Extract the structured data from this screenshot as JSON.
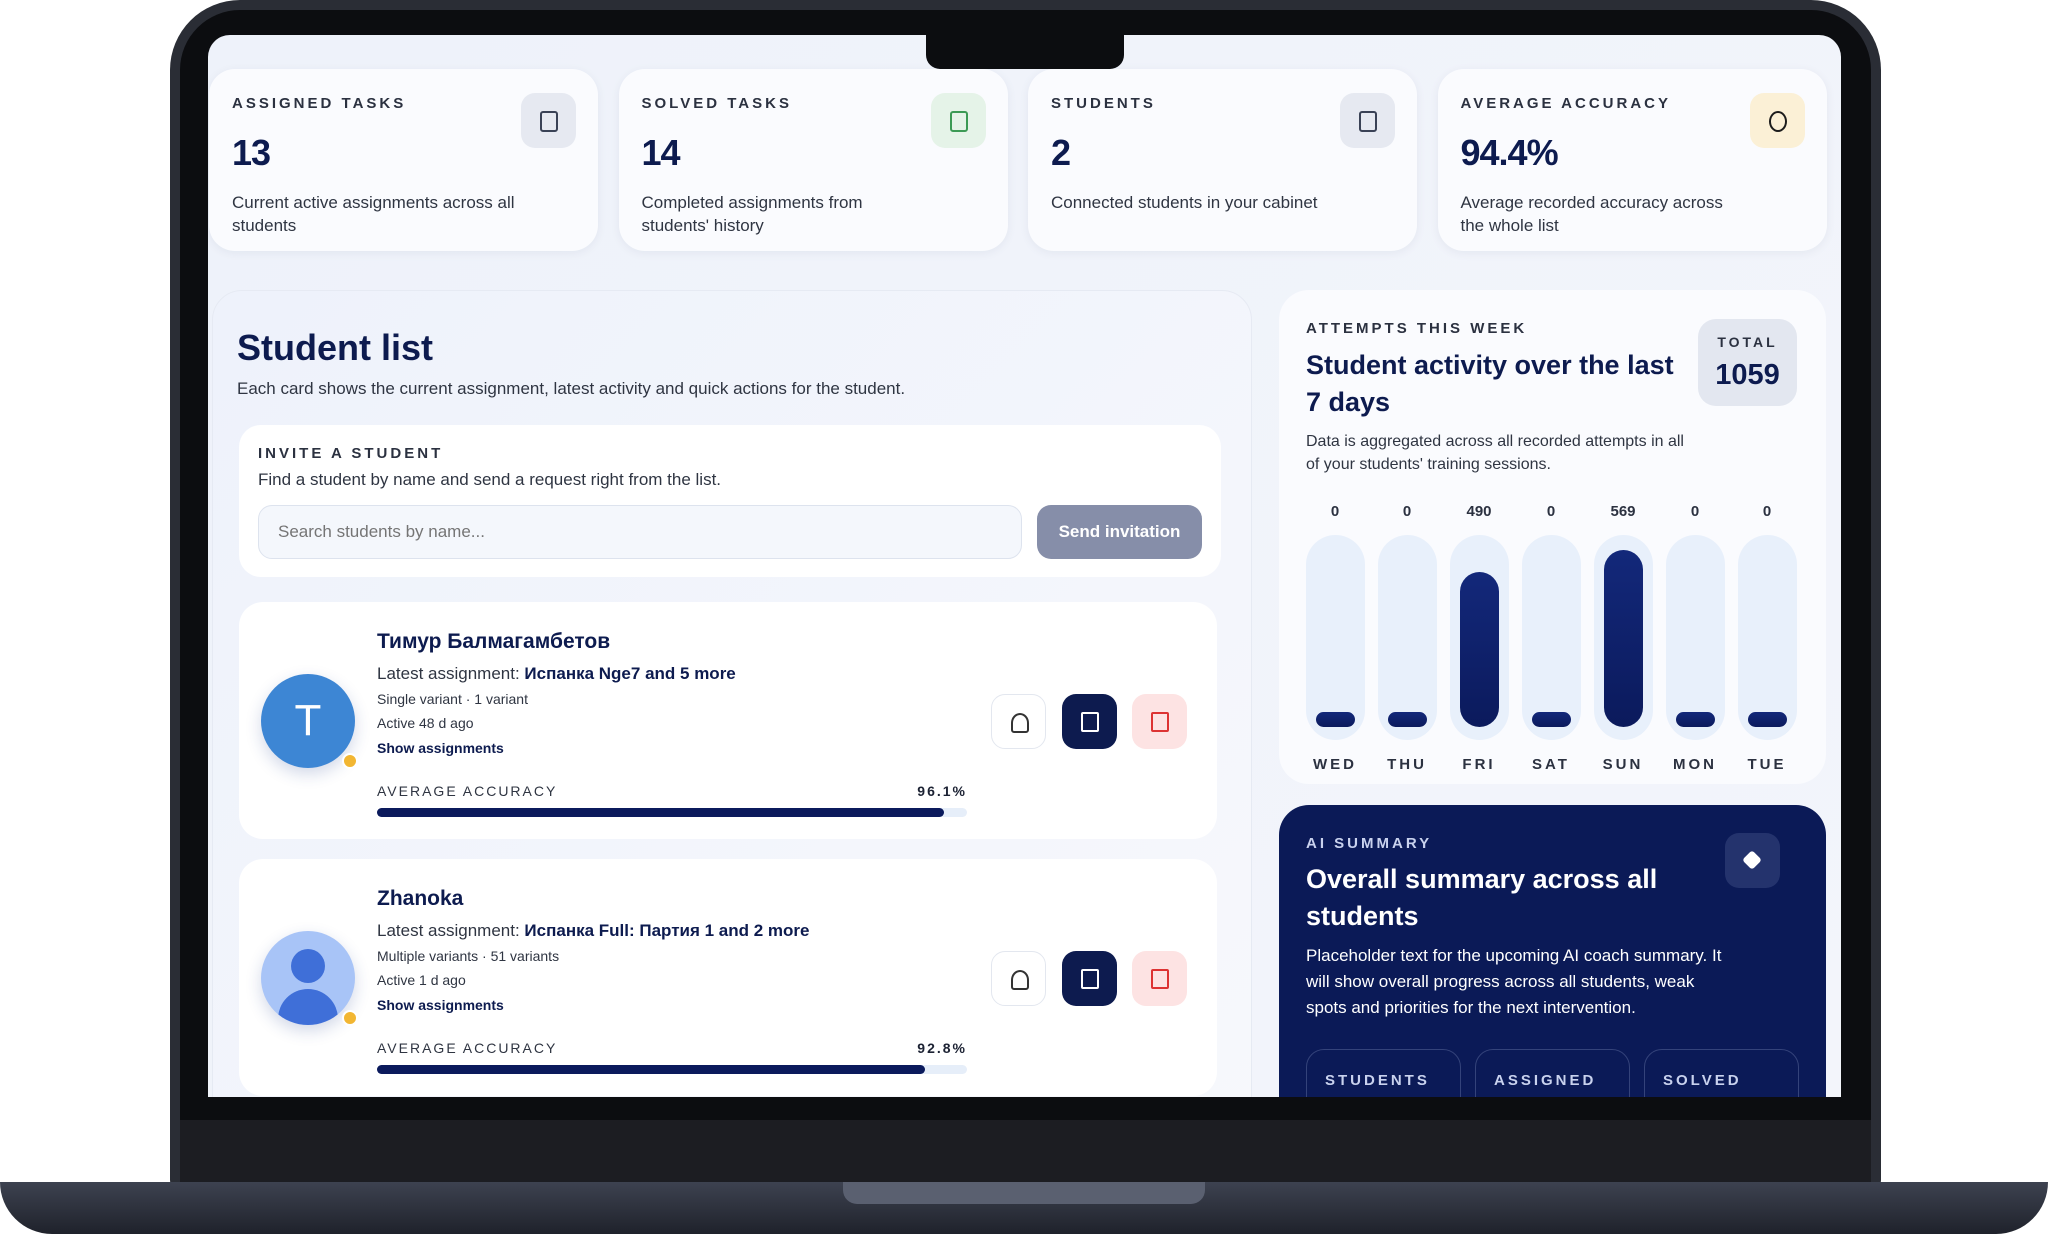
{
  "stats": [
    {
      "label": "ASSIGNED TASKS",
      "value": "13",
      "description": "Current active assignments across all students"
    },
    {
      "label": "SOLVED TASKS",
      "value": "14",
      "description": "Completed assignments from students' history"
    },
    {
      "label": "STUDENTS",
      "value": "2",
      "description": "Connected students in your cabinet"
    },
    {
      "label": "AVERAGE ACCURACY",
      "value": "94.4%",
      "description": "Average recorded accuracy across the whole list"
    }
  ],
  "student_list": {
    "title": "Student list",
    "subtitle": "Each card shows the current assignment, latest activity and quick actions for the student.",
    "invite": {
      "label": "INVITE A STUDENT",
      "description": "Find a student by name and send a request right from the list.",
      "search_placeholder": "Search students by name...",
      "button": "Send invitation"
    },
    "students": [
      {
        "avatar_initial": "T",
        "name": "Тимур Балмагамбетов",
        "assignment_prefix": "Latest assignment:",
        "assignment": "Испанка Nge7 and 5 more",
        "mode": "Single variant · 1 variant",
        "activity": "Active 48 d ago",
        "link": "Show assignments",
        "accuracy_label": "AVERAGE ACCURACY",
        "accuracy": {
          "value": 96.1,
          "label": "96.1%"
        }
      },
      {
        "name": "Zhanoka",
        "assignment_prefix": "Latest assignment:",
        "assignment": "Испанка Full: Партия 1 and 2 more",
        "mode": "Multiple variants · 51 variants",
        "activity": "Active 1 d ago",
        "link": "Show assignments",
        "accuracy_label": "AVERAGE ACCURACY",
        "accuracy": {
          "value": 92.8,
          "label": "92.8%"
        }
      }
    ]
  },
  "activity": {
    "label": "ATTEMPTS THIS WEEK",
    "title": "Student activity over the last 7 days",
    "description": "Data is aggregated across all recorded attempts in all of your students' training sessions.",
    "total_label": "TOTAL",
    "total": 1059,
    "days": [
      "WED",
      "THU",
      "FRI",
      "SAT",
      "SUN",
      "MON",
      "TUE"
    ],
    "values": [
      0,
      0,
      490,
      0,
      569,
      0,
      0
    ]
  },
  "ai_summary": {
    "label": "AI SUMMARY",
    "title": "Overall summary across all students",
    "text": "Placeholder text for the upcoming AI coach summary. It will show overall progress across all students, weak spots and priorities for the next intervention.",
    "chips": [
      "STUDENTS",
      "ASSIGNED",
      "SOLVED"
    ]
  }
}
